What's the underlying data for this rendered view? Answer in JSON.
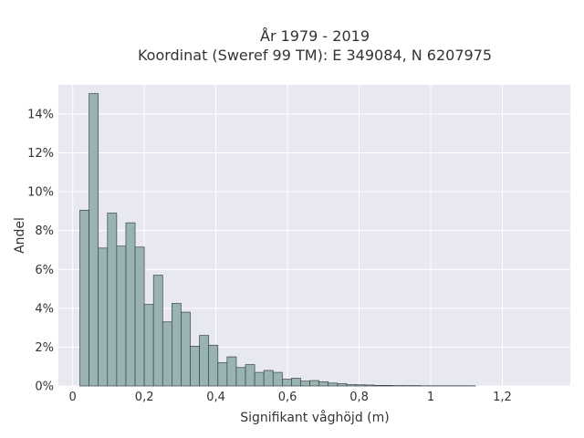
{
  "chart_data": {
    "type": "bar",
    "title_lines": [
      "År 1979 - 2019",
      "Koordinat (Sweref 99 TM): E 349084, N 6207975"
    ],
    "xlabel": "Signifikant våghöjd (m)",
    "ylabel": "Andel",
    "xlim": [
      -0.04,
      1.39
    ],
    "ylim": [
      0,
      15.5
    ],
    "x_ticks": [
      {
        "value": 0,
        "label": "0"
      },
      {
        "value": 0.2,
        "label": "0,2"
      },
      {
        "value": 0.4,
        "label": "0,4"
      },
      {
        "value": 0.6,
        "label": "0,6"
      },
      {
        "value": 0.8,
        "label": "0,8"
      },
      {
        "value": 1.0,
        "label": "1"
      },
      {
        "value": 1.2,
        "label": "1,2"
      }
    ],
    "y_ticks": [
      {
        "value": 0,
        "label": "0%"
      },
      {
        "value": 2,
        "label": "2%"
      },
      {
        "value": 4,
        "label": "4%"
      },
      {
        "value": 6,
        "label": "6%"
      },
      {
        "value": 8,
        "label": "8%"
      },
      {
        "value": 10,
        "label": "10%"
      },
      {
        "value": 12,
        "label": "12%"
      },
      {
        "value": 14,
        "label": "14%"
      }
    ],
    "grid": true,
    "colors": {
      "plot_background": "#e8e8f1",
      "bar_fill": "#99b3b3",
      "bar_stroke": "#3a4444",
      "grid": "#ffffff"
    },
    "bin_width": 0.0257,
    "bin_start": 0.02,
    "values": [
      9.05,
      15.05,
      7.1,
      8.9,
      7.2,
      8.4,
      7.15,
      4.2,
      5.7,
      3.3,
      4.25,
      3.8,
      2.05,
      2.6,
      2.1,
      1.2,
      1.5,
      0.95,
      1.1,
      0.7,
      0.8,
      0.7,
      0.35,
      0.4,
      0.25,
      0.28,
      0.22,
      0.15,
      0.12,
      0.07,
      0.06,
      0.05,
      0.03,
      0.03,
      0.02,
      0.02,
      0.02,
      0.01,
      0.01,
      0.01,
      0.01,
      0.01,
      0.01
    ]
  }
}
